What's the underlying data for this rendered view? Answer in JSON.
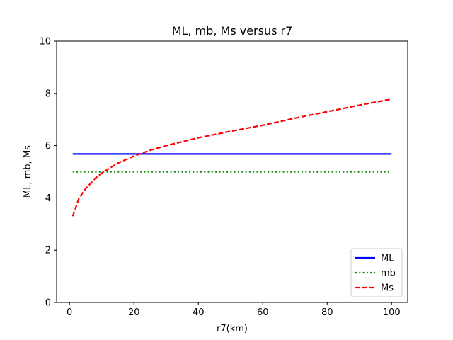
{
  "chart_data": {
    "type": "line",
    "title": "ML, mb, Ms versus r7",
    "xlabel": "r7(km)",
    "ylabel": "ML, mb, Ms",
    "xlim": [
      -4,
      105
    ],
    "ylim": [
      0,
      10
    ],
    "xticks": [
      0,
      20,
      40,
      60,
      80,
      100
    ],
    "yticks": [
      0,
      2,
      4,
      6,
      8,
      10
    ],
    "grid": false,
    "legend_position": "lower-right",
    "series": [
      {
        "name": "ML",
        "color": "#0000ff",
        "style": "solid",
        "x": [
          1,
          100
        ],
        "y": [
          5.68,
          5.68
        ]
      },
      {
        "name": "mb",
        "color": "#008000",
        "style": "dotted",
        "x": [
          1,
          100
        ],
        "y": [
          5.0,
          5.0
        ]
      },
      {
        "name": "Ms",
        "color": "#ff0000",
        "style": "dashed",
        "x": [
          1,
          3,
          5,
          8,
          10,
          15,
          20,
          25,
          30,
          40,
          50,
          60,
          70,
          80,
          90,
          100
        ],
        "y": [
          3.3,
          4.0,
          4.35,
          4.75,
          4.95,
          5.33,
          5.6,
          5.82,
          6.0,
          6.3,
          6.55,
          6.78,
          7.05,
          7.3,
          7.55,
          7.78
        ]
      }
    ]
  }
}
